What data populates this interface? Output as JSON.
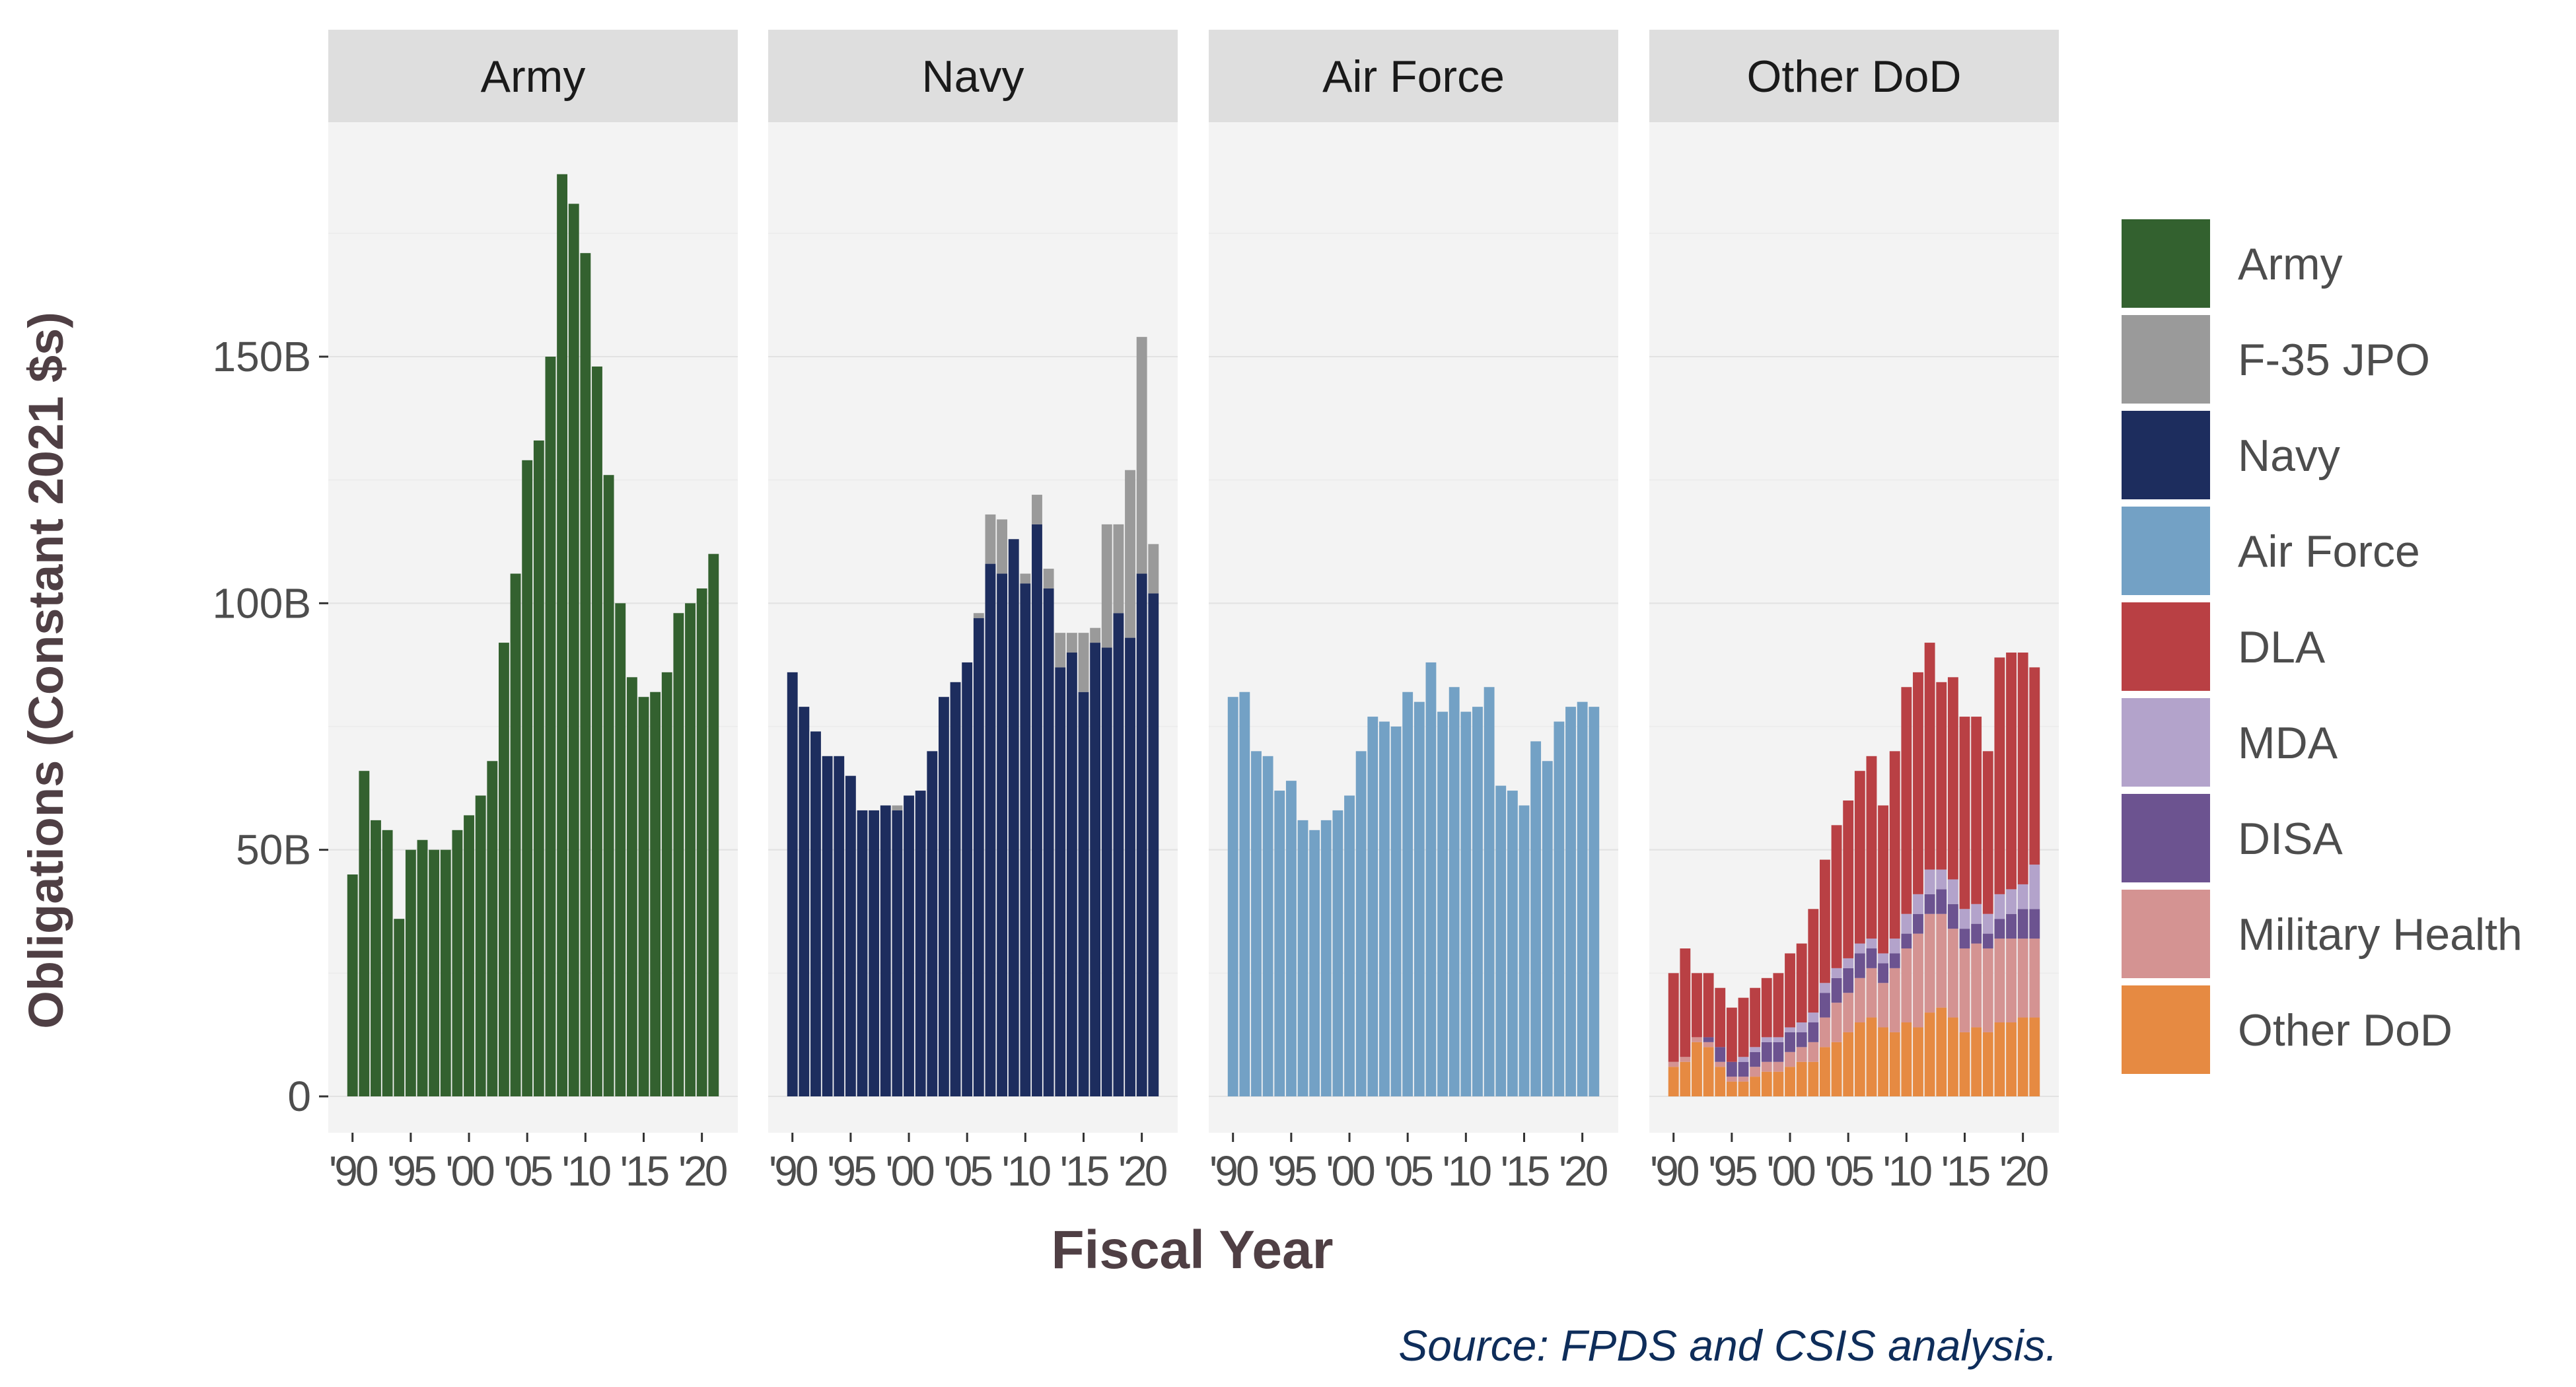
{
  "chart_data": {
    "type": "bar",
    "stacked": true,
    "facet_by": "Component",
    "ylabel": "Obligations (Constant 2021 $s)",
    "xlabel": "Fiscal Year",
    "source_note": "Source: FPDS and CSIS analysis.",
    "ylim": [
      0,
      200
    ],
    "y_unit": "billions (constant 2021 $)",
    "y_ticks": [
      0,
      50,
      100,
      150
    ],
    "y_tick_labels": [
      "0",
      "50B",
      "100B",
      "150B"
    ],
    "x": [
      1990,
      1991,
      1992,
      1993,
      1994,
      1995,
      1996,
      1997,
      1998,
      1999,
      2000,
      2001,
      2002,
      2003,
      2004,
      2005,
      2006,
      2007,
      2008,
      2009,
      2010,
      2011,
      2012,
      2013,
      2014,
      2015,
      2016,
      2017,
      2018,
      2019,
      2020,
      2021
    ],
    "x_ticks": [
      1990,
      1995,
      2000,
      2005,
      2010,
      2015,
      2020
    ],
    "x_tick_labels": [
      "'90",
      "'95",
      "'00",
      "'05",
      "'10",
      "'15",
      "'20"
    ],
    "legend": {
      "placement": "right",
      "entries": [
        {
          "name": "Army",
          "color": "#33612f"
        },
        {
          "name": "F-35 JPO",
          "color": "#9a9a9a"
        },
        {
          "name": "Navy",
          "color": "#1d2d5e"
        },
        {
          "name": "Air Force",
          "color": "#73a1c5"
        },
        {
          "name": "DLA",
          "color": "#b94044"
        },
        {
          "name": "MDA",
          "color": "#b3a3cb"
        },
        {
          "name": "DISA",
          "color": "#6c5390"
        },
        {
          "name": "Military Health",
          "color": "#d49392"
        },
        {
          "name": "Other DoD",
          "color": "#e68a42"
        }
      ]
    },
    "panels": [
      {
        "title": "Army",
        "series": [
          {
            "name": "Army",
            "values": [
              45,
              66,
              56,
              54,
              36,
              50,
              52,
              50,
              50,
              54,
              57,
              61,
              68,
              92,
              106,
              129,
              133,
              150,
              187,
              181,
              171,
              148,
              126,
              100,
              85,
              81,
              82,
              86,
              98,
              100,
              103,
              110
            ]
          }
        ]
      },
      {
        "title": "Navy",
        "series": [
          {
            "name": "Navy",
            "values": [
              86,
              79,
              74,
              69,
              69,
              65,
              58,
              58,
              59,
              58,
              61,
              62,
              70,
              81,
              84,
              88,
              97,
              108,
              106,
              113,
              104,
              116,
              103,
              87,
              90,
              82,
              92,
              91,
              98,
              93,
              106,
              102
            ]
          },
          {
            "name": "F-35 JPO",
            "values": [
              0,
              0,
              0,
              0,
              0,
              0,
              0,
              0,
              0,
              1,
              0,
              0,
              0,
              0,
              0,
              0,
              1,
              10,
              11,
              0,
              2,
              6,
              4,
              7,
              4,
              12,
              3,
              25,
              18,
              34,
              48,
              10
            ]
          }
        ]
      },
      {
        "title": "Air Force",
        "series": [
          {
            "name": "Air Force",
            "values": [
              81,
              82,
              70,
              69,
              62,
              64,
              56,
              54,
              56,
              58,
              61,
              70,
              77,
              76,
              75,
              82,
              80,
              88,
              78,
              83,
              78,
              79,
              83,
              63,
              62,
              59,
              72,
              68,
              76,
              79,
              80,
              79
            ]
          }
        ]
      },
      {
        "title": "Other DoD",
        "series": [
          {
            "name": "Other DoD",
            "values": [
              6,
              7,
              11,
              10,
              6,
              3,
              3,
              4,
              5,
              5,
              6,
              7,
              7,
              10,
              11,
              13,
              15,
              16,
              14,
              13,
              15,
              14,
              17,
              18,
              16,
              13,
              14,
              13,
              15,
              15,
              16,
              16
            ]
          },
          {
            "name": "Military Health",
            "values": [
              1,
              1,
              1,
              1,
              1,
              1,
              1,
              2,
              2,
              2,
              3,
              3,
              4,
              6,
              8,
              8,
              9,
              10,
              9,
              13,
              15,
              19,
              20,
              19,
              18,
              17,
              17,
              17,
              17,
              17,
              16,
              16
            ]
          },
          {
            "name": "DISA",
            "values": [
              0,
              0,
              0,
              1,
              3,
              3,
              3,
              3,
              4,
              4,
              4,
              3,
              4,
              5,
              5,
              5,
              5,
              4,
              4,
              3,
              3,
              4,
              4,
              5,
              5,
              4,
              4,
              3,
              4,
              5,
              6,
              6
            ]
          },
          {
            "name": "MDA",
            "values": [
              0,
              0,
              0,
              0,
              0,
              0,
              1,
              1,
              1,
              1,
              1,
              2,
              2,
              2,
              2,
              2,
              2,
              2,
              2,
              3,
              4,
              4,
              5,
              4,
              5,
              4,
              4,
              4,
              5,
              5,
              5,
              9
            ]
          },
          {
            "name": "DLA",
            "values": [
              18,
              22,
              13,
              13,
              12,
              11,
              12,
              12,
              12,
              13,
              15,
              16,
              21,
              25,
              29,
              32,
              35,
              37,
              30,
              38,
              46,
              45,
              46,
              38,
              41,
              39,
              38,
              33,
              48,
              48,
              47,
              40
            ]
          }
        ]
      }
    ]
  }
}
